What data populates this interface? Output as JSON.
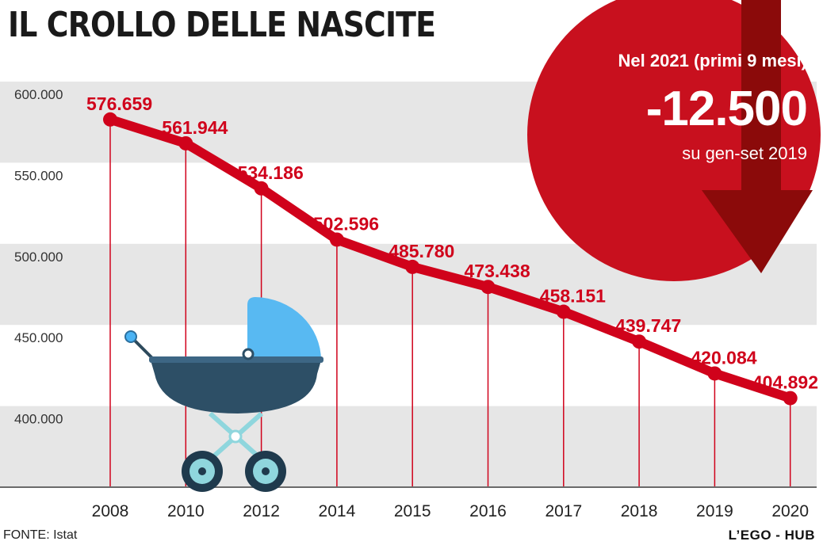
{
  "header": {
    "title": "IL CROLLO DELLE NASCITE"
  },
  "callout": {
    "period": "Nel 2021 (primi 9 mesi)",
    "value": "-12.500",
    "comparison": "su gen-set 2019"
  },
  "footer": {
    "source": "FONTE: Istat",
    "credit": "L’EGO - HUB"
  },
  "colors": {
    "line": "#d0021b",
    "band": "#e6e6e6",
    "callout": "#c8101e",
    "arrow": "#8b0a0a"
  },
  "chart_data": {
    "type": "line",
    "title": "IL CROLLO DELLE NASCITE",
    "xlabel": "",
    "ylabel": "",
    "categories": [
      "2008",
      "2010",
      "2012",
      "2014",
      "2015",
      "2016",
      "2017",
      "2018",
      "2019",
      "2020"
    ],
    "values": [
      576659,
      561944,
      534186,
      502596,
      485780,
      473438,
      458151,
      439747,
      420084,
      404892
    ],
    "data_labels": [
      "576.659",
      "561.944",
      "534.186",
      "502.596",
      "485.780",
      "473.438",
      "458.151",
      "439.747",
      "420.084",
      "404.892"
    ],
    "y_ticks": [
      400000,
      450000,
      500000,
      550000,
      600000
    ],
    "y_tick_labels": [
      "400.000",
      "450.000",
      "500.000",
      "550.000",
      "600.000"
    ],
    "ylim": [
      350000,
      600000
    ],
    "grid": "alternating horizontal bands",
    "legend": "none"
  }
}
